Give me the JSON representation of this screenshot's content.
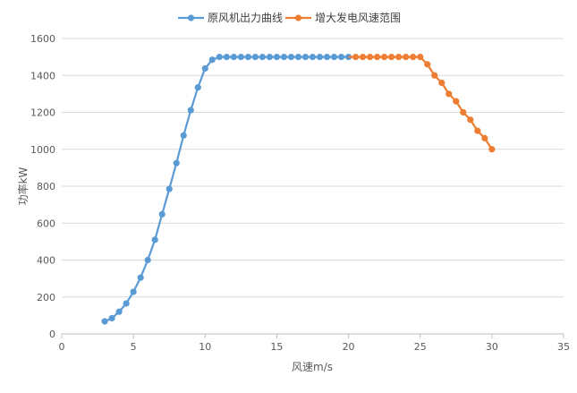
{
  "chart_data": {
    "type": "line",
    "xlabel": "风速m/s",
    "ylabel": "功率kW",
    "xlim": [
      0,
      35
    ],
    "ylim": [
      0,
      1600
    ],
    "x_ticks": [
      0,
      5,
      10,
      15,
      20,
      25,
      30,
      35
    ],
    "y_ticks": [
      0,
      200,
      400,
      600,
      800,
      1000,
      1200,
      1400,
      1600
    ],
    "grid": "horizontal",
    "legend_position": "top",
    "series": [
      {
        "name": "原风机出力曲线",
        "color": "#5B9BD5",
        "x": [
          3,
          3.5,
          4,
          4.5,
          5,
          5.5,
          6,
          6.5,
          7,
          7.5,
          8,
          8.5,
          9,
          9.5,
          10,
          10.5,
          11,
          11.5,
          12,
          12.5,
          13,
          13.5,
          14,
          14.5,
          15,
          15.5,
          16,
          16.5,
          17,
          17.5,
          18,
          18.5,
          19,
          19.5,
          20
        ],
        "y": [
          68,
          85,
          120,
          165,
          228,
          305,
          400,
          510,
          648,
          785,
          925,
          1075,
          1212,
          1335,
          1438,
          1485,
          1500,
          1500,
          1500,
          1500,
          1500,
          1500,
          1500,
          1500,
          1500,
          1500,
          1500,
          1500,
          1500,
          1500,
          1500,
          1500,
          1500,
          1500,
          1500
        ]
      },
      {
        "name": "增大发电风速范围",
        "color": "#ED7D31",
        "x": [
          20.5,
          21,
          21.5,
          22,
          22.5,
          23,
          23.5,
          24,
          24.5,
          25,
          25.5,
          26,
          26.5,
          27,
          27.5,
          28,
          28.5,
          29,
          29.5,
          30
        ],
        "y": [
          1500,
          1500,
          1500,
          1500,
          1500,
          1500,
          1500,
          1500,
          1500,
          1500,
          1460,
          1400,
          1360,
          1300,
          1260,
          1200,
          1160,
          1100,
          1060,
          1000
        ]
      }
    ]
  }
}
